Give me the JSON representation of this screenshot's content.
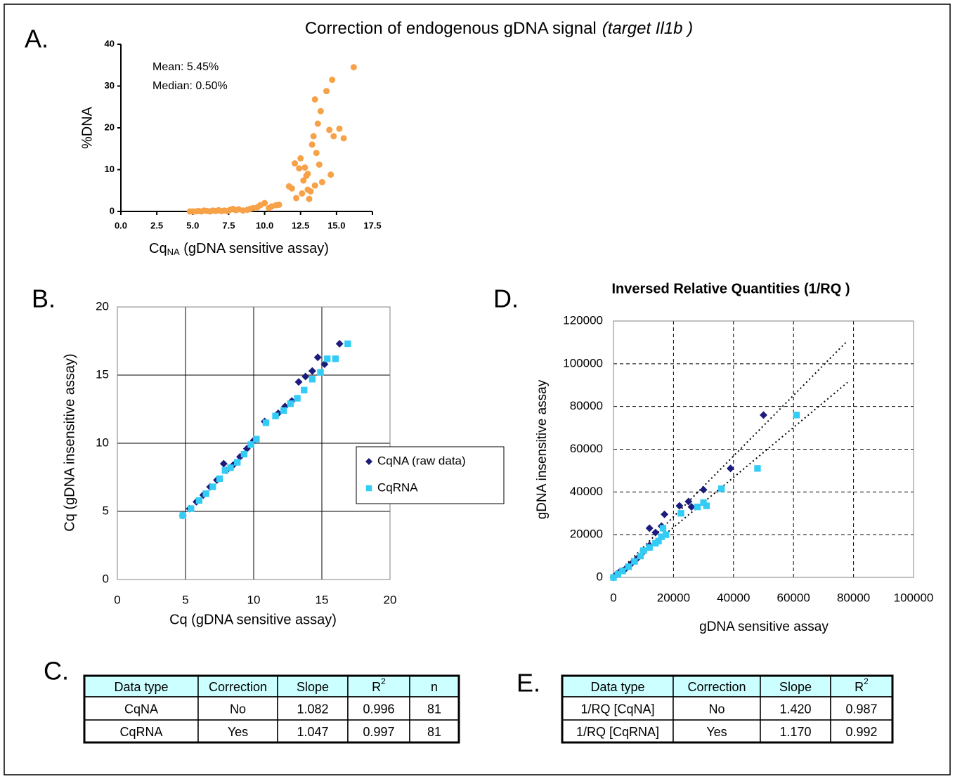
{
  "title": {
    "main": "Correction of endogenous gDNA signal",
    "italic": "(target Il1b )"
  },
  "chart_data": [
    {
      "type": "scatter",
      "panel": "A.",
      "xlabel": {
        "base": "Cq",
        "sub": "NA",
        "rest": " (gDNA sensitive assay)"
      },
      "ylabel": "%DNA",
      "annotations": [
        "Mean: 5.45%",
        "Median: 0.50%"
      ],
      "xlim": [
        0,
        17.5
      ],
      "xticks": [
        {
          "value": 0,
          "label": "0.0"
        },
        {
          "value": 2.5,
          "label": "2.5"
        },
        {
          "value": 5,
          "label": "5.0"
        },
        {
          "value": 7.5,
          "label": "7.5"
        },
        {
          "value": 10,
          "label": "10.0"
        },
        {
          "value": 12.5,
          "label": "12.5"
        },
        {
          "value": 15,
          "label": "15.0"
        },
        {
          "value": 17.5,
          "label": "17.5"
        }
      ],
      "ylim": [
        0,
        40
      ],
      "yticks": [
        0,
        10,
        20,
        30,
        40
      ],
      "grid": false,
      "series": [
        {
          "color": "#f7a148",
          "marker": "circle",
          "x": [
            4.8,
            5.0,
            5.2,
            5.4,
            5.6,
            5.8,
            6.0,
            6.2,
            6.4,
            6.6,
            6.8,
            7.0,
            7.2,
            7.4,
            7.6,
            7.8,
            8.0,
            8.2,
            8.5,
            8.8,
            9.0,
            9.2,
            9.5,
            9.7,
            10.0,
            10.3,
            10.5,
            10.8,
            11.0,
            11.7,
            11.9,
            12.1,
            12.2,
            12.4,
            12.5,
            12.6,
            12.7,
            12.8,
            12.9,
            13.0,
            13.0,
            13.1,
            13.2,
            13.3,
            13.4,
            13.5,
            13.5,
            13.6,
            13.7,
            13.8,
            13.9,
            14.0,
            14.3,
            14.5,
            14.6,
            14.7,
            14.8,
            15.2,
            15.5,
            16.2
          ],
          "values": [
            0,
            0,
            0,
            0.1,
            0,
            0.2,
            0.1,
            0,
            0.2,
            0.1,
            0.3,
            0.1,
            0.2,
            0.1,
            0.4,
            0.6,
            0.3,
            0.5,
            0.2,
            0.4,
            0.6,
            0.8,
            1.0,
            1.5,
            2.0,
            0.8,
            1.2,
            1.5,
            1.6,
            6.0,
            5.5,
            11.5,
            3.2,
            10.3,
            12.7,
            4.3,
            7.4,
            10.5,
            8.5,
            5.2,
            9.0,
            3.0,
            4.8,
            16.0,
            18.0,
            26.8,
            6.2,
            14.0,
            21.0,
            11.2,
            24.0,
            7.0,
            28.8,
            19.5,
            8.8,
            31.5,
            18.0,
            19.8,
            17.5,
            34.5
          ]
        }
      ]
    },
    {
      "type": "scatter",
      "panel": "B.",
      "xlabel": "Cq (gDNA sensitive assay)",
      "ylabel": "Cq (gDNA insensitive assay)",
      "xlim": [
        0,
        20
      ],
      "xticks": [
        0,
        5,
        10,
        15,
        20
      ],
      "ylim": [
        0,
        20
      ],
      "yticks": [
        0,
        5,
        10,
        15,
        20
      ],
      "grid": "solid",
      "legend": "right",
      "series": [
        {
          "name": "CqNA (raw data)",
          "color": "#1c1c7c",
          "marker": "diamond",
          "x": [
            4.8,
            5.3,
            5.8,
            6.3,
            6.8,
            7.3,
            7.8,
            8.0,
            8.5,
            9.0,
            9.5,
            10.0,
            10.8,
            11.8,
            12.3,
            12.8,
            13.3,
            13.8,
            14.3,
            14.7,
            15.2,
            16.3
          ],
          "values": [
            4.7,
            5.2,
            5.7,
            6.2,
            6.8,
            7.3,
            8.5,
            8.0,
            8.4,
            9.0,
            9.6,
            10.2,
            11.6,
            12.2,
            12.7,
            13.1,
            14.5,
            14.9,
            15.3,
            16.3,
            15.8,
            17.3
          ]
        },
        {
          "name": "CqRNA",
          "color": "#33ccf5",
          "marker": "square",
          "x": [
            4.8,
            5.4,
            6.0,
            6.5,
            7.0,
            7.5,
            7.9,
            8.3,
            8.8,
            9.3,
            9.8,
            10.2,
            10.9,
            11.6,
            12.2,
            12.7,
            13.2,
            13.7,
            14.3,
            14.9,
            15.4,
            16.0,
            16.9
          ],
          "values": [
            4.7,
            5.2,
            5.8,
            6.3,
            6.8,
            7.4,
            8.0,
            8.2,
            8.6,
            9.2,
            9.9,
            10.3,
            11.5,
            12.0,
            12.4,
            12.9,
            13.3,
            13.9,
            14.7,
            15.2,
            16.2,
            16.2,
            17.3
          ]
        }
      ]
    },
    {
      "type": "scatter",
      "panel": "D.",
      "title": "Inversed Relative Quantities (1/RQ )",
      "xlabel": "gDNA sensitive assay",
      "ylabel": "gDNA insensitive assay",
      "xlim": [
        0,
        100000
      ],
      "xticks": [
        0,
        20000,
        40000,
        60000,
        80000,
        100000
      ],
      "ylim": [
        0,
        120000
      ],
      "yticks": [
        0,
        20000,
        40000,
        60000,
        80000,
        100000,
        120000
      ],
      "grid": "dashed",
      "trendline_x": [
        0,
        78000
      ],
      "series": [
        {
          "color": "#1c1c7c",
          "marker": "diamond",
          "x": [
            0,
            1000,
            2000,
            4000,
            6000,
            8000,
            10000,
            12000,
            12000,
            14000,
            16000,
            17000,
            22000,
            25000,
            26000,
            30000,
            39000,
            50000
          ],
          "values": [
            0,
            1500,
            2500,
            4000,
            6500,
            9000,
            12000,
            15000,
            23000,
            21000,
            24000,
            29500,
            33500,
            35500,
            33000,
            41000,
            51000,
            76000
          ]
        },
        {
          "color": "#33ccf5",
          "marker": "square",
          "x": [
            0,
            1500,
            3000,
            5000,
            7000,
            9000,
            10000,
            12000,
            14000,
            15000,
            16000,
            16500,
            17500,
            22500,
            28000,
            30000,
            31000,
            36000,
            48000,
            61000
          ],
          "values": [
            0,
            1500,
            3000,
            5000,
            7500,
            10000,
            12500,
            14000,
            16000,
            17000,
            19000,
            23000,
            20000,
            30000,
            33000,
            35000,
            33500,
            41500,
            51000,
            76000
          ]
        }
      ]
    }
  ],
  "tables": [
    {
      "panel": "C.",
      "header": [
        "Data type",
        "Correction",
        "Slope",
        {
          "base": "R",
          "sup": "2"
        },
        "n"
      ],
      "rows": [
        [
          "CqNA",
          "No",
          "1.082",
          "0.996",
          "81"
        ],
        [
          "CqRNA",
          "Yes",
          "1.047",
          "0.997",
          "81"
        ]
      ]
    },
    {
      "panel": "E.",
      "header": [
        "Data type",
        "Correction",
        "Slope",
        {
          "base": "R",
          "sup": "2"
        }
      ],
      "rows": [
        [
          "1/RQ [CqNA]",
          "No",
          "1.420",
          "0.987"
        ],
        [
          "1/RQ [CqRNA]",
          "Yes",
          "1.170",
          "0.992"
        ]
      ]
    }
  ]
}
